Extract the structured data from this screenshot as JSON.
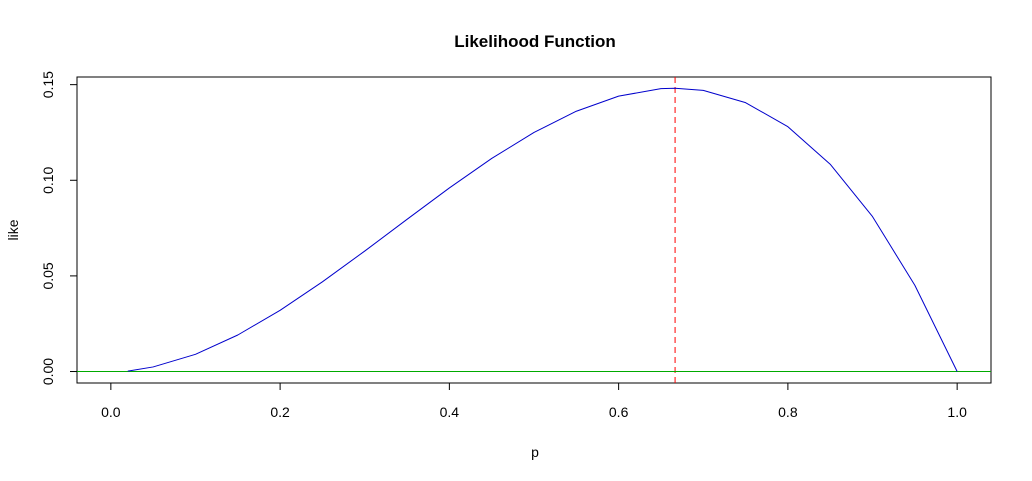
{
  "chart_data": {
    "type": "line",
    "title": "Likelihood Function",
    "xlabel": "p",
    "ylabel": "like",
    "xlim": [
      -0.04,
      1.04
    ],
    "ylim": [
      -0.006,
      0.154
    ],
    "x_ticks": [
      0.0,
      0.2,
      0.4,
      0.6,
      0.8,
      1.0
    ],
    "x_tick_labels": [
      "0.0",
      "0.2",
      "0.4",
      "0.6",
      "0.8",
      "1.0"
    ],
    "y_ticks": [
      0.0,
      0.05,
      0.1,
      0.15
    ],
    "y_tick_labels": [
      "0.00",
      "0.05",
      "0.10",
      "0.15"
    ],
    "grid": false,
    "legend": "none",
    "series": [
      {
        "color": "#0000cc",
        "x": [
          0.02,
          0.05,
          0.1,
          0.15,
          0.2,
          0.25,
          0.3,
          0.35,
          0.4,
          0.45,
          0.5,
          0.55,
          0.6,
          0.65,
          0.6667,
          0.7,
          0.75,
          0.8,
          0.85,
          0.9,
          0.95,
          1.0
        ],
        "y": [
          0.0002,
          0.0024,
          0.009,
          0.0191,
          0.032,
          0.0469,
          0.063,
          0.0796,
          0.096,
          0.1114,
          0.125,
          0.1361,
          0.144,
          0.1479,
          0.1481,
          0.147,
          0.1406,
          0.128,
          0.1084,
          0.081,
          0.0451,
          0.0
        ]
      }
    ],
    "annotations": [
      {
        "kind": "vline",
        "x": 0.6667,
        "color": "#ff0000",
        "style": "dashed"
      },
      {
        "kind": "hline",
        "y": 0.0,
        "color": "#00aa00",
        "style": "solid"
      }
    ]
  }
}
